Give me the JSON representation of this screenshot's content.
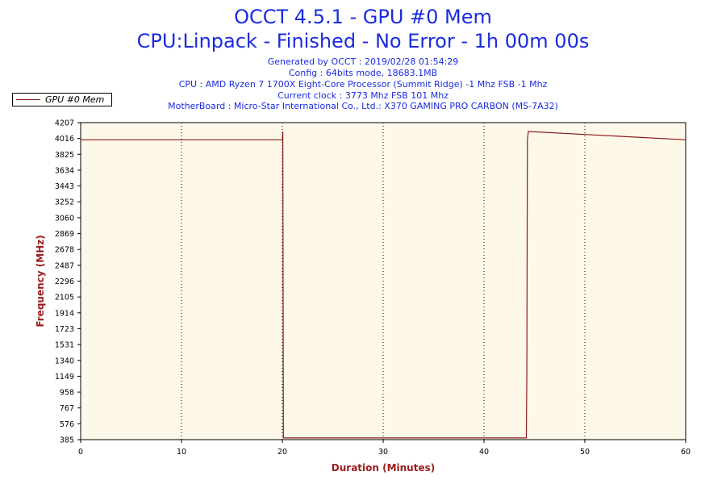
{
  "header": {
    "title_line1": "OCCT 4.5.1 - GPU #0 Mem",
    "title_line2": "CPU:Linpack - Finished - No Error - 1h 00m 00s",
    "info_lines": [
      "Generated by OCCT : 2019/02/28 01:54:29",
      "Config : 64bits mode, 18683.1MB",
      "CPU : AMD Ryzen 7 1700X Eight-Core Processor (Summit Ridge) -1 Mhz FSB -1 Mhz",
      "Current clock : 3773 Mhz FSB 101 Mhz",
      "MotherBoard : Micro-Star International Co., Ltd.: X370 GAMING PRO CARBON (MS-7A32)"
    ]
  },
  "colors": {
    "title": "#1a2be0",
    "axis_label": "#9b1c1c",
    "series": "#8b1a1a",
    "plot_bg": "#fdf8e8",
    "grid": "#000000"
  },
  "chart_data": {
    "type": "line",
    "xlabel": "Duration (Minutes)",
    "ylabel": "Frequency (MHz)",
    "xlim": [
      0,
      60
    ],
    "ylim": [
      385,
      4207
    ],
    "x_ticks": [
      "0",
      "10",
      "20",
      "30",
      "40",
      "50",
      "60"
    ],
    "y_ticks": [
      "385",
      "576",
      "767",
      "958",
      "1149",
      "1340",
      "1531",
      "1723",
      "1914",
      "2105",
      "2296",
      "2487",
      "2678",
      "2869",
      "3060",
      "3252",
      "3443",
      "3634",
      "3825",
      "4016",
      "4207"
    ],
    "grid": "vertical dotted",
    "legend_position": "top-left, outside plot",
    "series": [
      {
        "name": "GPU #0 Mem",
        "x": [
          0,
          20.0,
          20.05,
          20.1,
          44.2,
          44.25,
          44.3,
          44.4,
          60
        ],
        "y": [
          4000,
          4000,
          4100,
          405,
          405,
          1200,
          4000,
          4100,
          4000
        ]
      }
    ]
  }
}
